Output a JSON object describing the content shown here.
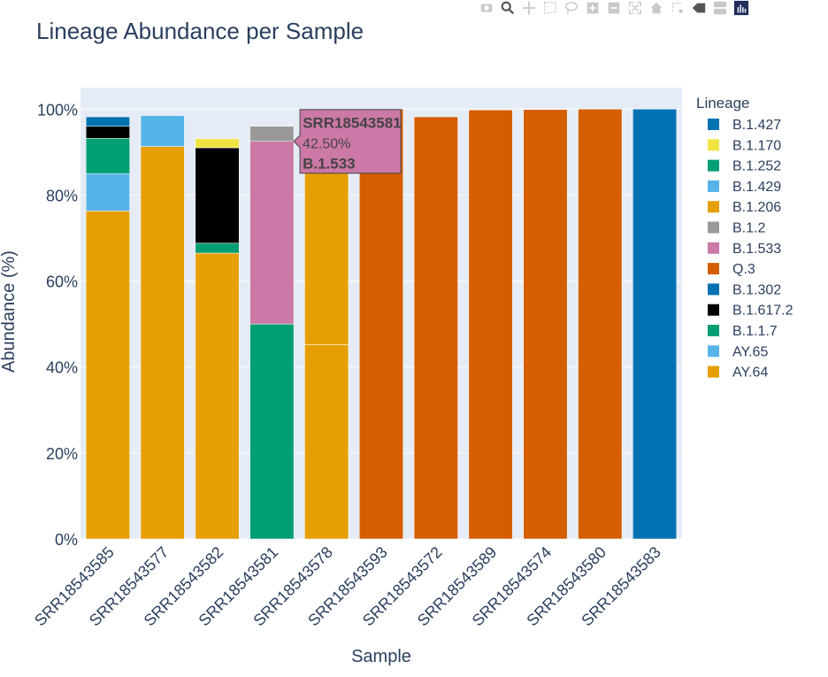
{
  "chart_data": {
    "type": "bar",
    "stacked": true,
    "title": "Lineage Abundance per Sample",
    "xlabel": "Sample",
    "ylabel": "Abundance (%)",
    "ylim": [
      0,
      105
    ],
    "yticks": [
      0,
      20,
      40,
      60,
      80,
      100
    ],
    "ytick_labels": [
      "0%",
      "20%",
      "40%",
      "60%",
      "80%",
      "100%"
    ],
    "grid": true,
    "legend_title": "Lineage",
    "legend_position": "right",
    "categories": [
      "SRR18543585",
      "SRR18543577",
      "SRR18543582",
      "SRR18543581",
      "SRR18543578",
      "SRR18543593",
      "SRR18543572",
      "SRR18543589",
      "SRR18543574",
      "SRR18543580",
      "SRR18543583"
    ],
    "series": [
      {
        "name": "AY.64",
        "color": "#E69F00",
        "values": [
          76.3,
          91.3,
          66.5,
          0,
          45.2,
          0,
          0,
          0,
          0,
          0,
          0
        ]
      },
      {
        "name": "AY.65",
        "color": "#56B4E9",
        "values": [
          8.7,
          7.2,
          0,
          0,
          0,
          0,
          0,
          0,
          0,
          0,
          0
        ]
      },
      {
        "name": "B.1.1.7",
        "color": "#009E73",
        "values": [
          8.2,
          0,
          2.3,
          50.0,
          0,
          0,
          0,
          0,
          0,
          0,
          0
        ]
      },
      {
        "name": "B.1.617.2",
        "color": "#000000",
        "values": [
          2.8,
          0,
          22.2,
          0,
          0,
          0,
          0,
          0,
          0,
          0,
          0
        ]
      },
      {
        "name": "B.1.302",
        "color": "#0072B2",
        "values": [
          0,
          0,
          0,
          0,
          0,
          0,
          0,
          0,
          0,
          0,
          100.0
        ]
      },
      {
        "name": "Q.3",
        "color": "#D55E00",
        "values": [
          0,
          0,
          0,
          0,
          0,
          100.0,
          98.2,
          99.8,
          99.9,
          100.0,
          0
        ]
      },
      {
        "name": "B.1.533",
        "color": "#CC79A7",
        "values": [
          0,
          0,
          0,
          42.5,
          0,
          0,
          0,
          0,
          0,
          0,
          0
        ]
      },
      {
        "name": "B.1.2",
        "color": "#999999",
        "values": [
          0,
          0,
          0,
          3.5,
          0,
          0,
          0,
          0,
          0,
          0,
          0
        ]
      },
      {
        "name": "B.1.206",
        "color": "#E69F00",
        "values": [
          0,
          0,
          0,
          0,
          42.5,
          0,
          0,
          0,
          0,
          0,
          0
        ]
      },
      {
        "name": "B.1.429",
        "color": "#56B4E9",
        "values": [
          0,
          0,
          0,
          0,
          0,
          0,
          0,
          0,
          0,
          0,
          0
        ]
      },
      {
        "name": "B.1.252",
        "color": "#009E73",
        "values": [
          0,
          0,
          0,
          0,
          0,
          0,
          0,
          0,
          0,
          0,
          0
        ]
      },
      {
        "name": "B.1.170",
        "color": "#F0E442",
        "values": [
          0,
          0,
          2.1,
          0,
          0,
          0,
          0,
          0,
          0,
          0,
          0
        ]
      },
      {
        "name": "B.1.427",
        "color": "#0072B2",
        "values": [
          2.2,
          0,
          0,
          0,
          0,
          0,
          0,
          0,
          0,
          0,
          0
        ]
      }
    ],
    "legend_order": [
      "B.1.427",
      "B.1.170",
      "B.1.252",
      "B.1.429",
      "B.1.206",
      "B.1.2",
      "B.1.533",
      "Q.3",
      "B.1.302",
      "B.1.617.2",
      "B.1.1.7",
      "AY.65",
      "AY.64"
    ],
    "tooltip": {
      "sample": "SRR18543581",
      "value_label": "42.50%",
      "lineage": "B.1.533",
      "series_index": 6,
      "category_index": 3,
      "color": "#CC79A7"
    }
  },
  "toolbar": {
    "buttons": [
      {
        "name": "download-plot-button",
        "icon": "camera-icon"
      },
      {
        "name": "zoom-button",
        "icon": "zoom-icon"
      },
      {
        "name": "pan-button",
        "icon": "pan-icon"
      },
      {
        "name": "box-select-button",
        "icon": "box-select-icon"
      },
      {
        "name": "lasso-select-button",
        "icon": "lasso-icon"
      },
      {
        "name": "zoom-in-button",
        "icon": "zoom-in-icon"
      },
      {
        "name": "zoom-out-button",
        "icon": "zoom-out-icon"
      },
      {
        "name": "autoscale-button",
        "icon": "autoscale-icon"
      },
      {
        "name": "reset-axes-button",
        "icon": "home-icon"
      },
      {
        "name": "spike-lines-button",
        "icon": "spike-icon"
      },
      {
        "name": "hover-closest-button",
        "icon": "hover-closest-icon"
      },
      {
        "name": "hover-compare-button",
        "icon": "hover-compare-icon"
      },
      {
        "name": "plotly-logo-button",
        "icon": "plotly-logo-icon"
      }
    ]
  }
}
